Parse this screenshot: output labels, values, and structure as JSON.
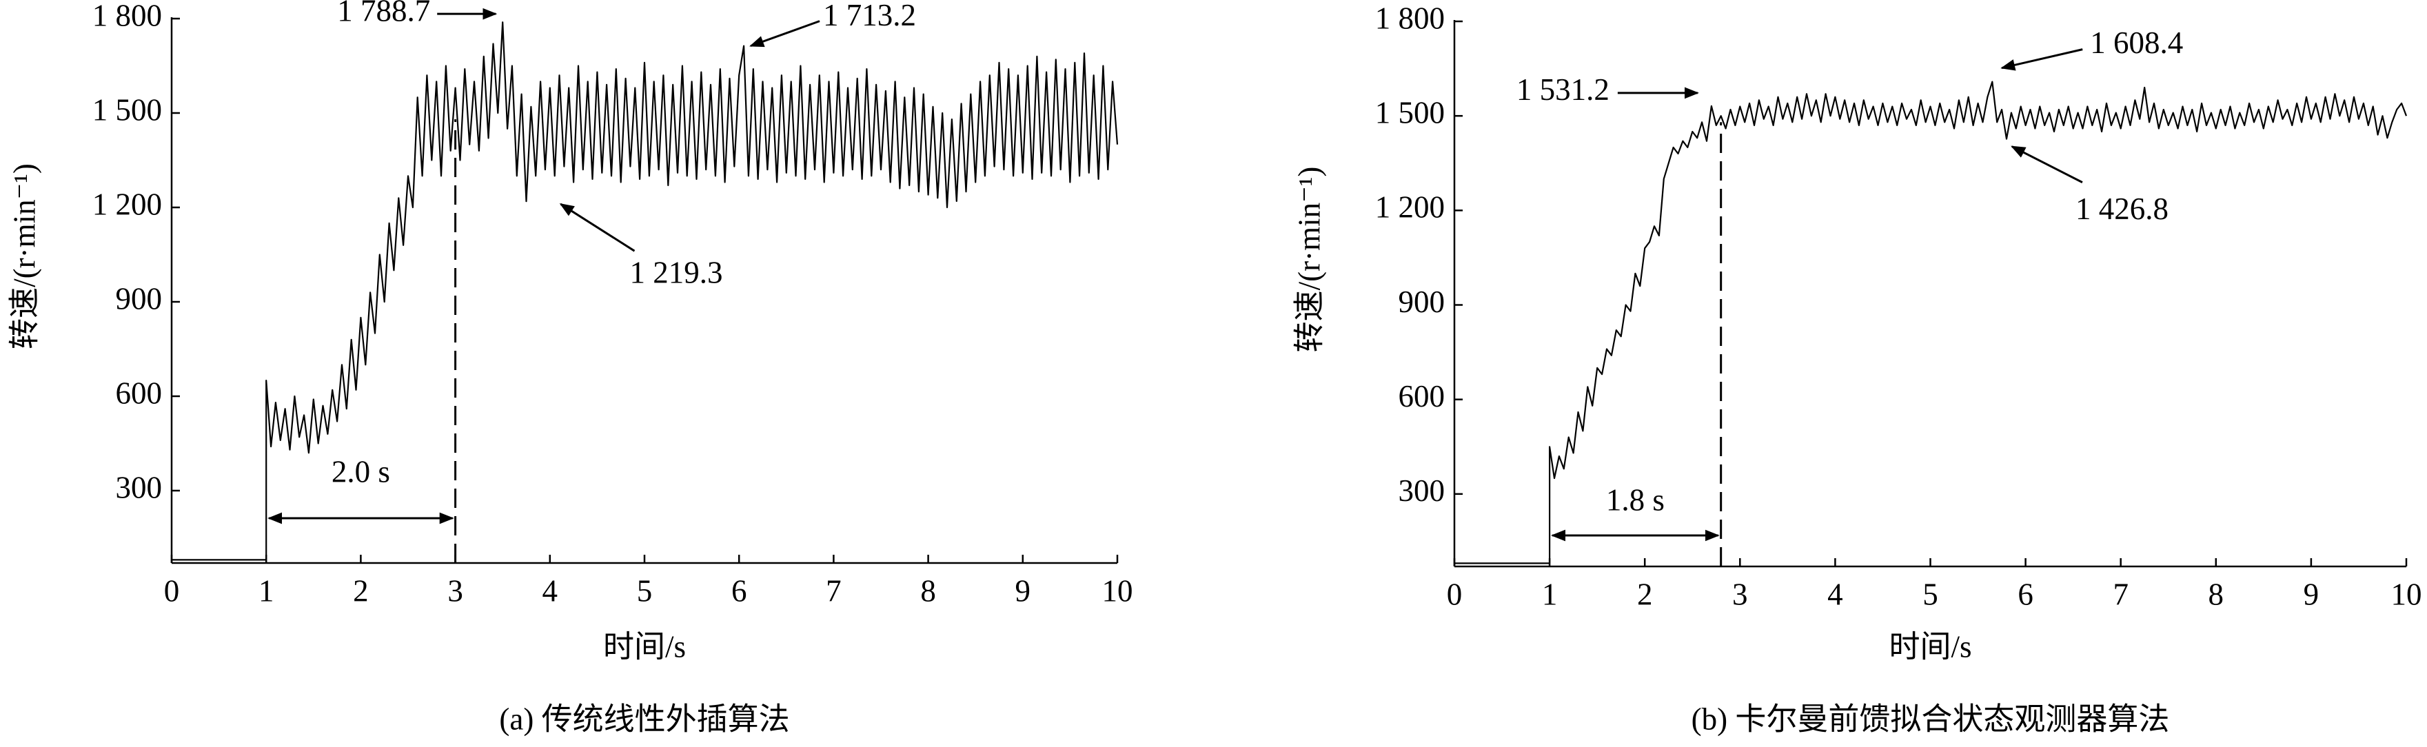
{
  "chart_data": [
    {
      "type": "line",
      "caption": "(a) 传统线性外插算法",
      "xlabel": "时间/s",
      "ylabel": "转速/(r·min⁻¹)",
      "color": "#000000",
      "xlim": [
        0,
        10
      ],
      "xticks": [
        0,
        1,
        2,
        3,
        4,
        5,
        6,
        7,
        8,
        9,
        10
      ],
      "ylim": [
        70,
        1800
      ],
      "yticks": [
        300,
        600,
        900,
        {
          "value": 1200,
          "label": "1 200"
        },
        {
          "value": 1500,
          "label": "1 500"
        },
        {
          "value": 1800,
          "label": "1 800"
        }
      ],
      "x": [
        0,
        1,
        1,
        1.05,
        1.1,
        1.15,
        1.2,
        1.25,
        1.3,
        1.35,
        1.4,
        1.45,
        1.5,
        1.55,
        1.6,
        1.65,
        1.7,
        1.75,
        1.8,
        1.85,
        1.9,
        1.95,
        2,
        2.05,
        2.1,
        2.15,
        2.2,
        2.25,
        2.3,
        2.35,
        2.4,
        2.45,
        2.5,
        2.55,
        2.6,
        2.65,
        2.7,
        2.75,
        2.8,
        2.85,
        2.9,
        2.95,
        3,
        3.05,
        3.1,
        3.15,
        3.2,
        3.25,
        3.3,
        3.35,
        3.4,
        3.45,
        3.5,
        3.55,
        3.6,
        3.65,
        3.7,
        3.75,
        3.8,
        3.85,
        3.9,
        3.95,
        4,
        4.05,
        4.1,
        4.15,
        4.2,
        4.25,
        4.3,
        4.35,
        4.4,
        4.45,
        4.5,
        4.55,
        4.6,
        4.65,
        4.7,
        4.75,
        4.8,
        4.85,
        4.9,
        4.95,
        5,
        5.05,
        5.1,
        5.15,
        5.2,
        5.25,
        5.3,
        5.35,
        5.4,
        5.45,
        5.5,
        5.55,
        5.6,
        5.65,
        5.7,
        5.75,
        5.8,
        5.85,
        5.9,
        5.95,
        6,
        6.05,
        6.1,
        6.15,
        6.2,
        6.25,
        6.3,
        6.35,
        6.4,
        6.45,
        6.5,
        6.55,
        6.6,
        6.65,
        6.7,
        6.75,
        6.8,
        6.85,
        6.9,
        6.95,
        7,
        7.05,
        7.1,
        7.15,
        7.2,
        7.25,
        7.3,
        7.35,
        7.4,
        7.45,
        7.5,
        7.55,
        7.6,
        7.65,
        7.7,
        7.75,
        7.8,
        7.85,
        7.9,
        7.95,
        8,
        8.05,
        8.1,
        8.15,
        8.2,
        8.25,
        8.3,
        8.35,
        8.4,
        8.45,
        8.5,
        8.55,
        8.6,
        8.65,
        8.7,
        8.75,
        8.8,
        8.85,
        8.9,
        8.95,
        9,
        9.05,
        9.1,
        9.15,
        9.2,
        9.25,
        9.3,
        9.35,
        9.4,
        9.45,
        9.5,
        9.55,
        9.6,
        9.65,
        9.7,
        9.75,
        9.8,
        9.85,
        9.9,
        9.95,
        10
      ],
      "values": [
        80,
        80,
        650,
        440,
        580,
        460,
        560,
        430,
        600,
        470,
        540,
        420,
        590,
        450,
        570,
        480,
        620,
        520,
        700,
        560,
        780,
        620,
        850,
        700,
        930,
        800,
        1050,
        900,
        1150,
        1000,
        1230,
        1080,
        1300,
        1200,
        1550,
        1300,
        1620,
        1350,
        1600,
        1300,
        1650,
        1380,
        1580,
        1350,
        1640,
        1400,
        1600,
        1380,
        1680,
        1420,
        1720,
        1500,
        1788.7,
        1450,
        1650,
        1300,
        1560,
        1219.3,
        1520,
        1300,
        1600,
        1320,
        1580,
        1300,
        1620,
        1330,
        1580,
        1280,
        1650,
        1320,
        1600,
        1290,
        1630,
        1310,
        1590,
        1300,
        1640,
        1280,
        1610,
        1330,
        1580,
        1290,
        1660,
        1300,
        1600,
        1320,
        1620,
        1270,
        1590,
        1310,
        1650,
        1300,
        1600,
        1290,
        1630,
        1320,
        1590,
        1300,
        1640,
        1280,
        1610,
        1330,
        1620,
        1713.2,
        1300,
        1640,
        1290,
        1600,
        1320,
        1580,
        1280,
        1620,
        1310,
        1600,
        1300,
        1650,
        1290,
        1590,
        1320,
        1620,
        1280,
        1600,
        1310,
        1630,
        1300,
        1580,
        1320,
        1610,
        1290,
        1640,
        1300,
        1590,
        1320,
        1570,
        1280,
        1600,
        1260,
        1550,
        1270,
        1580,
        1250,
        1560,
        1240,
        1520,
        1230,
        1500,
        1200,
        1480,
        1220,
        1530,
        1250,
        1560,
        1280,
        1600,
        1300,
        1620,
        1330,
        1660,
        1320,
        1640,
        1300,
        1620,
        1310,
        1650,
        1290,
        1680,
        1310,
        1630,
        1300,
        1670,
        1320,
        1640,
        1280,
        1660,
        1300,
        1690,
        1310,
        1620,
        1290,
        1650,
        1320,
        1600,
        1400
      ],
      "annotations": [
        {
          "text": "1 788.7",
          "x": 3.5,
          "y": 1788.7
        },
        {
          "text": "1 219.3",
          "x": 3.75,
          "y": 1219.3
        },
        {
          "text": "1 713.2",
          "x": 6.05,
          "y": 1713.2
        }
      ],
      "span": {
        "start": 1,
        "end": 3,
        "label": "2.0 s"
      }
    },
    {
      "type": "line",
      "caption": "(b) 卡尔曼前馈拟合状态观测器算法",
      "xlabel": "时间/s",
      "ylabel": "转速/(r·min⁻¹)",
      "color": "#000000",
      "xlim": [
        0,
        10
      ],
      "xticks": [
        0,
        1,
        2,
        3,
        4,
        5,
        6,
        7,
        8,
        9,
        10
      ],
      "ylim": [
        70,
        1800
      ],
      "yticks": [
        300,
        600,
        900,
        {
          "value": 1200,
          "label": "1 200"
        },
        {
          "value": 1500,
          "label": "1 500"
        },
        {
          "value": 1800,
          "label": "1 800"
        }
      ],
      "x": [
        0,
        1,
        1,
        1.05,
        1.1,
        1.15,
        1.2,
        1.25,
        1.3,
        1.35,
        1.4,
        1.45,
        1.5,
        1.55,
        1.6,
        1.65,
        1.7,
        1.75,
        1.8,
        1.85,
        1.9,
        1.95,
        2,
        2.05,
        2.1,
        2.15,
        2.2,
        2.25,
        2.3,
        2.35,
        2.4,
        2.45,
        2.5,
        2.55,
        2.6,
        2.65,
        2.7,
        2.75,
        2.8,
        2.85,
        2.9,
        2.95,
        3,
        3.05,
        3.1,
        3.15,
        3.2,
        3.25,
        3.3,
        3.35,
        3.4,
        3.45,
        3.5,
        3.55,
        3.6,
        3.65,
        3.7,
        3.75,
        3.8,
        3.85,
        3.9,
        3.95,
        4,
        4.05,
        4.1,
        4.15,
        4.2,
        4.25,
        4.3,
        4.35,
        4.4,
        4.45,
        4.5,
        4.55,
        4.6,
        4.65,
        4.7,
        4.75,
        4.8,
        4.85,
        4.9,
        4.95,
        5,
        5.05,
        5.1,
        5.15,
        5.2,
        5.25,
        5.3,
        5.35,
        5.4,
        5.45,
        5.5,
        5.55,
        5.6,
        5.65,
        5.7,
        5.75,
        5.8,
        5.85,
        5.9,
        5.95,
        6,
        6.05,
        6.1,
        6.15,
        6.2,
        6.25,
        6.3,
        6.35,
        6.4,
        6.45,
        6.5,
        6.55,
        6.6,
        6.65,
        6.7,
        6.75,
        6.8,
        6.85,
        6.9,
        6.95,
        7,
        7.05,
        7.1,
        7.15,
        7.2,
        7.25,
        7.3,
        7.35,
        7.4,
        7.45,
        7.5,
        7.55,
        7.6,
        7.65,
        7.7,
        7.75,
        7.8,
        7.85,
        7.9,
        7.95,
        8,
        8.05,
        8.1,
        8.15,
        8.2,
        8.25,
        8.3,
        8.35,
        8.4,
        8.45,
        8.5,
        8.55,
        8.6,
        8.65,
        8.7,
        8.75,
        8.8,
        8.85,
        8.9,
        8.95,
        9,
        9.05,
        9.1,
        9.15,
        9.2,
        9.25,
        9.3,
        9.35,
        9.4,
        9.45,
        9.5,
        9.55,
        9.6,
        9.65,
        9.7,
        9.75,
        9.8,
        9.85,
        9.9,
        9.95,
        10
      ],
      "values": [
        80,
        80,
        450,
        350,
        420,
        380,
        480,
        430,
        560,
        500,
        640,
        580,
        700,
        680,
        760,
        740,
        820,
        800,
        900,
        880,
        1000,
        960,
        1080,
        1100,
        1150,
        1120,
        1300,
        1350,
        1400,
        1380,
        1420,
        1400,
        1450,
        1430,
        1480,
        1420,
        1531.2,
        1470,
        1500,
        1460,
        1520,
        1470,
        1530,
        1480,
        1540,
        1470,
        1550,
        1490,
        1530,
        1470,
        1560,
        1490,
        1540,
        1480,
        1560,
        1490,
        1570,
        1500,
        1550,
        1480,
        1570,
        1500,
        1560,
        1490,
        1550,
        1480,
        1540,
        1470,
        1550,
        1490,
        1530,
        1470,
        1540,
        1480,
        1530,
        1470,
        1540,
        1490,
        1520,
        1470,
        1550,
        1480,
        1530,
        1470,
        1540,
        1480,
        1520,
        1460,
        1550,
        1480,
        1560,
        1470,
        1540,
        1480,
        1560,
        1608.4,
        1480,
        1520,
        1426.8,
        1510,
        1460,
        1530,
        1470,
        1520,
        1460,
        1530,
        1470,
        1510,
        1450,
        1520,
        1470,
        1530,
        1460,
        1510,
        1460,
        1530,
        1470,
        1520,
        1450,
        1540,
        1470,
        1510,
        1460,
        1530,
        1470,
        1550,
        1490,
        1590,
        1480,
        1540,
        1460,
        1520,
        1470,
        1510,
        1460,
        1530,
        1470,
        1520,
        1450,
        1540,
        1470,
        1510,
        1460,
        1520,
        1470,
        1530,
        1460,
        1510,
        1470,
        1540,
        1480,
        1520,
        1460,
        1530,
        1480,
        1550,
        1490,
        1520,
        1470,
        1540,
        1480,
        1560,
        1490,
        1540,
        1480,
        1560,
        1490,
        1570,
        1500,
        1550,
        1480,
        1560,
        1490,
        1540,
        1470,
        1530,
        1440,
        1500,
        1430,
        1480,
        1520,
        1540,
        1500
      ],
      "annotations": [
        {
          "text": "1 531.2",
          "x": 2.7,
          "y": 1531.2
        },
        {
          "text": "1 608.4",
          "x": 5.65,
          "y": 1608.4
        },
        {
          "text": "1 426.8",
          "x": 5.8,
          "y": 1426.8
        }
      ],
      "span": {
        "start": 1,
        "end": 2.8,
        "label": "1.8 s"
      }
    }
  ]
}
